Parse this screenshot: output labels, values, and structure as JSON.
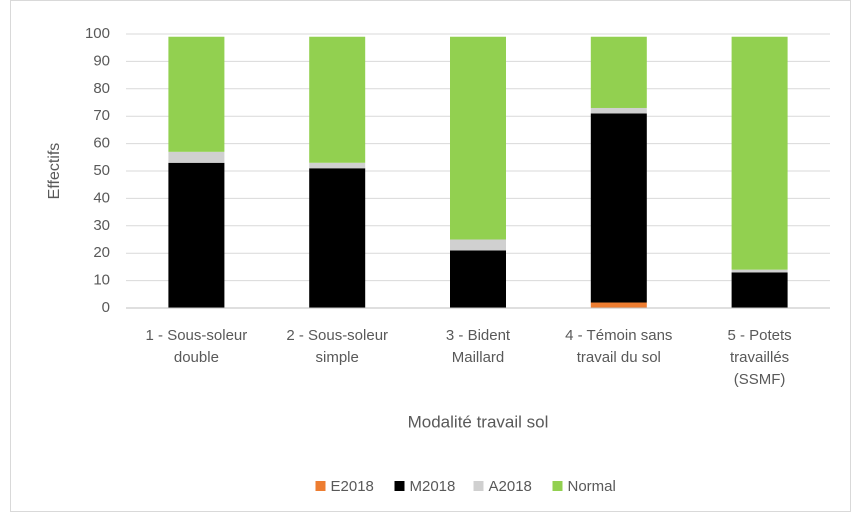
{
  "chart_data": {
    "type": "stacked_bar",
    "x_label": "Modalité travail sol",
    "y_label": "Effectifs",
    "categories": [
      "1 - Sous-soleur double",
      "2 - Sous-soleur simple",
      "3 - Bident Maillard",
      "4 - Témoin sans travail du sol",
      "5 - Potets travaillés (SSMF)"
    ],
    "series": [
      {
        "name": "E2018",
        "color": "#ed7d31",
        "values": [
          0,
          0,
          0,
          2,
          0
        ]
      },
      {
        "name": "M2018",
        "color": "#000000",
        "values": [
          53,
          51,
          21,
          69,
          13
        ]
      },
      {
        "name": "A2018",
        "color": "#d0d0d0",
        "values": [
          4,
          2,
          4,
          2,
          1
        ]
      },
      {
        "name": "Normal",
        "color": "#92d050",
        "values": [
          42,
          46,
          74,
          26,
          85
        ]
      }
    ],
    "ylim": [
      0,
      100
    ],
    "yticks": [
      0,
      10,
      20,
      30,
      40,
      50,
      60,
      70,
      80,
      90,
      100
    ],
    "grid": true,
    "legend": "bottom"
  }
}
